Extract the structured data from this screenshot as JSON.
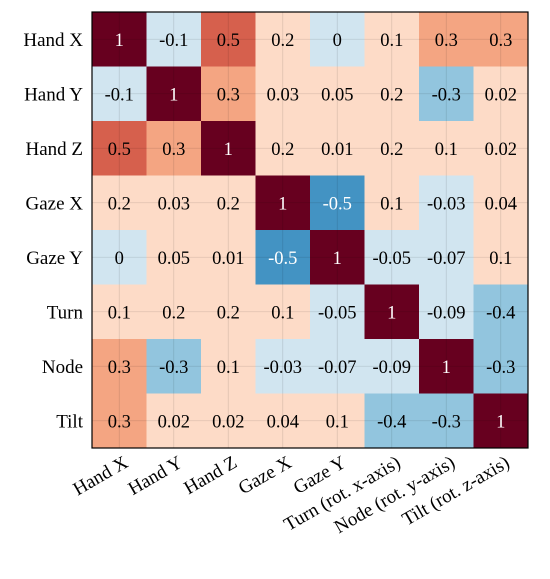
{
  "chart_data": {
    "type": "heatmap",
    "row_labels": [
      "Hand X",
      "Hand Y",
      "Hand Z",
      "Gaze X",
      "Gaze Y",
      "Turn",
      "Node",
      "Tilt"
    ],
    "col_labels": [
      "Hand X",
      "Hand Y",
      "Hand Z",
      "Gaze X",
      "Gaze Y",
      "Turn (rot. x-axis)",
      "Node (rot. y-axis)",
      "Tilt (rot. z-axis)"
    ],
    "values": [
      [
        1,
        -0.1,
        0.5,
        0.2,
        0,
        0.1,
        0.3,
        0.3
      ],
      [
        -0.1,
        1,
        0.3,
        0.03,
        0.05,
        0.2,
        -0.3,
        0.02
      ],
      [
        0.5,
        0.3,
        1,
        0.2,
        0.01,
        0.2,
        0.1,
        0.02
      ],
      [
        0.2,
        0.03,
        0.2,
        1,
        -0.5,
        0.1,
        -0.03,
        0.04
      ],
      [
        0,
        0.05,
        0.01,
        -0.5,
        1,
        -0.05,
        -0.07,
        0.1
      ],
      [
        0.1,
        0.2,
        0.2,
        0.1,
        -0.05,
        1,
        -0.09,
        -0.4
      ],
      [
        0.3,
        -0.3,
        0.1,
        -0.03,
        -0.07,
        -0.09,
        1,
        -0.3
      ],
      [
        0.3,
        0.02,
        0.02,
        0.04,
        0.1,
        -0.4,
        -0.3,
        1
      ]
    ],
    "value_range": [
      -1,
      1
    ],
    "colormap": "diverging blue-white-red",
    "grid": true,
    "colors": {
      "strong_pos": "#67001f",
      "pos_05": "#d6604d",
      "pos_03": "#f4a582",
      "pos_low": "#fddbc7",
      "neg_low": "#d1e5f0",
      "neg_03": "#92c5de",
      "neg_05": "#4393c3"
    }
  }
}
